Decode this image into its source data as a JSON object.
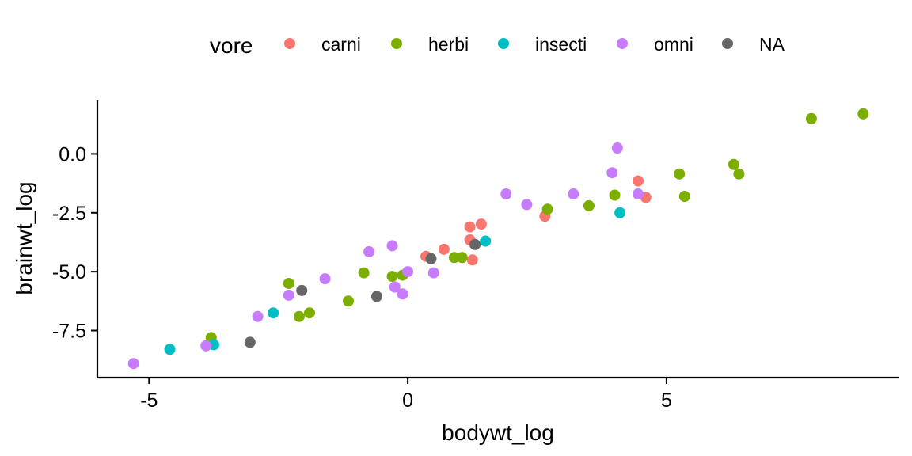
{
  "chart_data": {
    "type": "scatter",
    "xlabel": "bodywt_log",
    "ylabel": "brainwt_log",
    "xlim": [
      -6.0,
      9.5
    ],
    "ylim": [
      -9.5,
      2.3
    ],
    "x_ticks": [
      -5,
      0,
      5
    ],
    "x_tick_labels": [
      "-5",
      "0",
      "5"
    ],
    "y_ticks": [
      0.0,
      -2.5,
      -5.0,
      -7.5
    ],
    "y_tick_labels": [
      "0.0",
      "-2.5",
      "-5.0",
      "-7.5"
    ],
    "grid": false,
    "legend": {
      "title": "vore",
      "position": "top"
    },
    "series": [
      {
        "name": "carni",
        "color": "#F8766D",
        "points": [
          [
            0.35,
            -4.35
          ],
          [
            0.7,
            -4.05
          ],
          [
            1.2,
            -3.65
          ],
          [
            1.2,
            -3.1
          ],
          [
            1.42,
            -2.98
          ],
          [
            1.25,
            -4.5
          ],
          [
            2.65,
            -2.65
          ],
          [
            4.45,
            -1.15
          ],
          [
            4.6,
            -1.85
          ]
        ]
      },
      {
        "name": "herbi",
        "color": "#7CAE00",
        "points": [
          [
            -3.8,
            -7.8
          ],
          [
            -2.3,
            -5.5
          ],
          [
            -2.1,
            -6.9
          ],
          [
            -1.9,
            -6.75
          ],
          [
            -1.15,
            -6.25
          ],
          [
            -0.85,
            -5.05
          ],
          [
            -0.3,
            -5.2
          ],
          [
            -0.1,
            -5.15
          ],
          [
            0.9,
            -4.4
          ],
          [
            1.05,
            -4.4
          ],
          [
            2.7,
            -2.35
          ],
          [
            3.5,
            -2.2
          ],
          [
            4.0,
            -1.75
          ],
          [
            5.25,
            -0.85
          ],
          [
            5.35,
            -1.8
          ],
          [
            6.3,
            -0.45
          ],
          [
            6.4,
            -0.85
          ],
          [
            7.8,
            1.5
          ],
          [
            8.8,
            1.7
          ]
        ]
      },
      {
        "name": "insecti",
        "color": "#00BFC4",
        "points": [
          [
            -4.6,
            -8.3
          ],
          [
            -3.75,
            -8.1
          ],
          [
            -2.6,
            -6.75
          ],
          [
            1.5,
            -3.7
          ],
          [
            4.1,
            -2.5
          ]
        ]
      },
      {
        "name": "omni",
        "color": "#C77CFF",
        "points": [
          [
            -5.3,
            -8.9
          ],
          [
            -3.9,
            -8.15
          ],
          [
            -2.9,
            -6.9
          ],
          [
            -2.3,
            -6.0
          ],
          [
            -1.6,
            -5.3
          ],
          [
            -0.75,
            -4.15
          ],
          [
            -0.3,
            -3.9
          ],
          [
            -0.25,
            -5.65
          ],
          [
            -0.1,
            -5.95
          ],
          [
            0.0,
            -5.0
          ],
          [
            0.5,
            -5.05
          ],
          [
            1.9,
            -1.7
          ],
          [
            2.3,
            -2.15
          ],
          [
            3.2,
            -1.7
          ],
          [
            3.95,
            -0.8
          ],
          [
            4.05,
            0.25
          ],
          [
            4.45,
            -1.7
          ]
        ]
      },
      {
        "name": "NA",
        "color": "#666666",
        "points": [
          [
            -3.05,
            -8.0
          ],
          [
            -2.05,
            -5.8
          ],
          [
            -0.6,
            -6.05
          ],
          [
            0.45,
            -4.45
          ],
          [
            1.3,
            -3.85
          ]
        ]
      }
    ]
  }
}
